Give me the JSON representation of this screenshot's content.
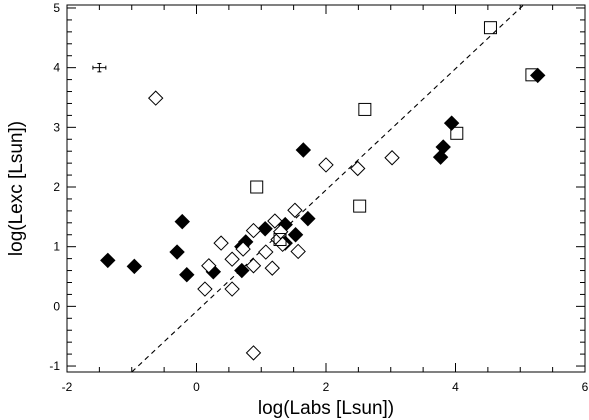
{
  "chart_data": {
    "type": "scatter",
    "title": "",
    "xlabel": "log(Labs [Lsun])",
    "ylabel": "log(Lexc [Lsun])",
    "xlim": [
      -2,
      6
    ],
    "ylim": [
      -1.1,
      5.05
    ],
    "xticks": [
      -2,
      0,
      2,
      4,
      6
    ],
    "yticks": [
      -1,
      0,
      1,
      2,
      3,
      4,
      5
    ],
    "grid": false,
    "legend": "none",
    "series": [
      {
        "marker": "filled-diamond",
        "points": [
          {
            "x": -1.37,
            "y": 0.77
          },
          {
            "x": -0.96,
            "y": 0.67
          },
          {
            "x": -0.3,
            "y": 0.91
          },
          {
            "x": -0.22,
            "y": 1.42
          },
          {
            "x": -0.15,
            "y": 0.53
          },
          {
            "x": 0.26,
            "y": 0.58
          },
          {
            "x": 0.7,
            "y": 1.0
          },
          {
            "x": 0.7,
            "y": 0.6
          },
          {
            "x": 0.76,
            "y": 1.08
          },
          {
            "x": 1.06,
            "y": 1.3
          },
          {
            "x": 1.37,
            "y": 1.37
          },
          {
            "x": 1.37,
            "y": 1.06
          },
          {
            "x": 1.53,
            "y": 1.2
          },
          {
            "x": 1.65,
            "y": 2.62
          },
          {
            "x": 1.72,
            "y": 1.47
          },
          {
            "x": 3.77,
            "y": 2.5
          },
          {
            "x": 3.81,
            "y": 2.67
          },
          {
            "x": 3.94,
            "y": 3.07
          },
          {
            "x": 5.27,
            "y": 3.87
          }
        ]
      },
      {
        "marker": "open-diamond",
        "points": [
          {
            "x": -0.63,
            "y": 3.49
          },
          {
            "x": 0.13,
            "y": 0.29
          },
          {
            "x": 0.19,
            "y": 0.68
          },
          {
            "x": 0.38,
            "y": 1.06
          },
          {
            "x": 0.55,
            "y": 0.29
          },
          {
            "x": 0.55,
            "y": 0.79
          },
          {
            "x": 0.72,
            "y": 0.96
          },
          {
            "x": 0.88,
            "y": 0.68
          },
          {
            "x": 0.88,
            "y": 1.27
          },
          {
            "x": 0.88,
            "y": -0.78
          },
          {
            "x": 1.07,
            "y": 0.91
          },
          {
            "x": 1.17,
            "y": 0.64
          },
          {
            "x": 1.21,
            "y": 1.43
          },
          {
            "x": 1.26,
            "y": 1.12
          },
          {
            "x": 1.3,
            "y": 1.25
          },
          {
            "x": 1.33,
            "y": 1.04
          },
          {
            "x": 1.52,
            "y": 1.61
          },
          {
            "x": 1.57,
            "y": 0.92
          },
          {
            "x": 2.0,
            "y": 2.37
          },
          {
            "x": 2.49,
            "y": 2.31
          },
          {
            "x": 3.02,
            "y": 2.49
          }
        ]
      },
      {
        "marker": "open-square",
        "points": [
          {
            "x": 0.93,
            "y": 2.0
          },
          {
            "x": 1.29,
            "y": 1.12
          },
          {
            "x": 2.52,
            "y": 1.68
          },
          {
            "x": 2.6,
            "y": 3.3
          },
          {
            "x": 4.02,
            "y": 2.9
          },
          {
            "x": 4.54,
            "y": 4.67
          },
          {
            "x": 5.18,
            "y": 3.88
          }
        ]
      }
    ],
    "error_bar_marker": {
      "x": -1.5,
      "y": 4.0,
      "xerr": 0.1,
      "yerr": 0.07
    },
    "reference_line": {
      "style": "dashed",
      "points": [
        [
          -1.0,
          -1.1
        ],
        [
          5.05,
          5.05
        ]
      ]
    }
  }
}
